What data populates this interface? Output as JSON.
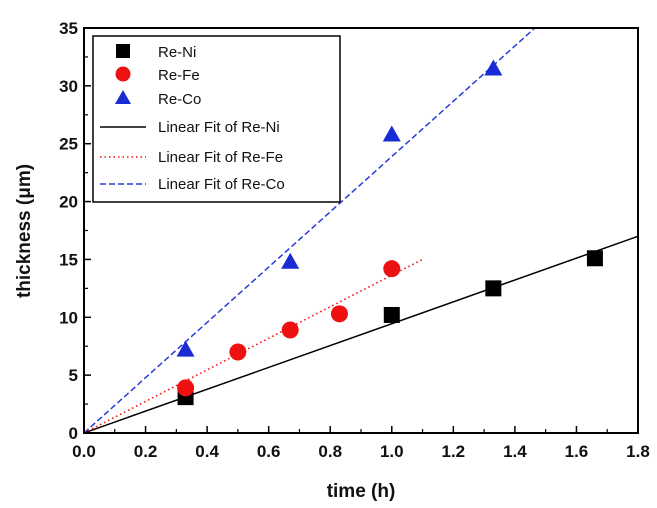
{
  "chart_data": {
    "type": "scatter",
    "title": "",
    "xlabel": "time (h)",
    "ylabel": "thickness (μm)",
    "xlim": [
      0,
      1.8
    ],
    "ylim": [
      0,
      35
    ],
    "xticks": [
      "0.0",
      "0.2",
      "0.4",
      "0.6",
      "0.8",
      "1.0",
      "1.2",
      "1.4",
      "1.6",
      "1.8"
    ],
    "yticks": [
      "0",
      "5",
      "10",
      "15",
      "20",
      "25",
      "30",
      "35"
    ],
    "legend_position": "top-left",
    "series": [
      {
        "name": "Re-Ni",
        "marker": "square",
        "color": "#000000",
        "x": [
          0.33,
          1.0,
          1.33,
          1.66
        ],
        "y": [
          3.1,
          10.2,
          12.5,
          15.1
        ]
      },
      {
        "name": "Re-Fe",
        "marker": "circle",
        "color": "#ee1111",
        "x": [
          0.33,
          0.5,
          0.67,
          0.83,
          1.0
        ],
        "y": [
          3.9,
          7.0,
          8.9,
          10.3,
          14.2
        ]
      },
      {
        "name": "Re-Co",
        "marker": "triangle",
        "color": "#1a2bd6",
        "x": [
          0.33,
          0.67,
          1.0,
          1.33
        ],
        "y": [
          7.2,
          14.8,
          25.8,
          31.5
        ]
      }
    ],
    "fits": [
      {
        "name": "Linear Fit of Re-Ni",
        "style": "solid",
        "color": "#000000",
        "x": [
          0,
          1.8
        ],
        "y": [
          0,
          17.0
        ]
      },
      {
        "name": "Linear Fit of Re-Fe",
        "style": "dotted",
        "color": "#ee1111",
        "x": [
          0,
          1.1
        ],
        "y": [
          0,
          15.0
        ]
      },
      {
        "name": "Linear Fit of Re-Co",
        "style": "dashed",
        "color": "#2a3ad8",
        "x": [
          0,
          1.465
        ],
        "y": [
          0,
          35
        ]
      }
    ]
  }
}
